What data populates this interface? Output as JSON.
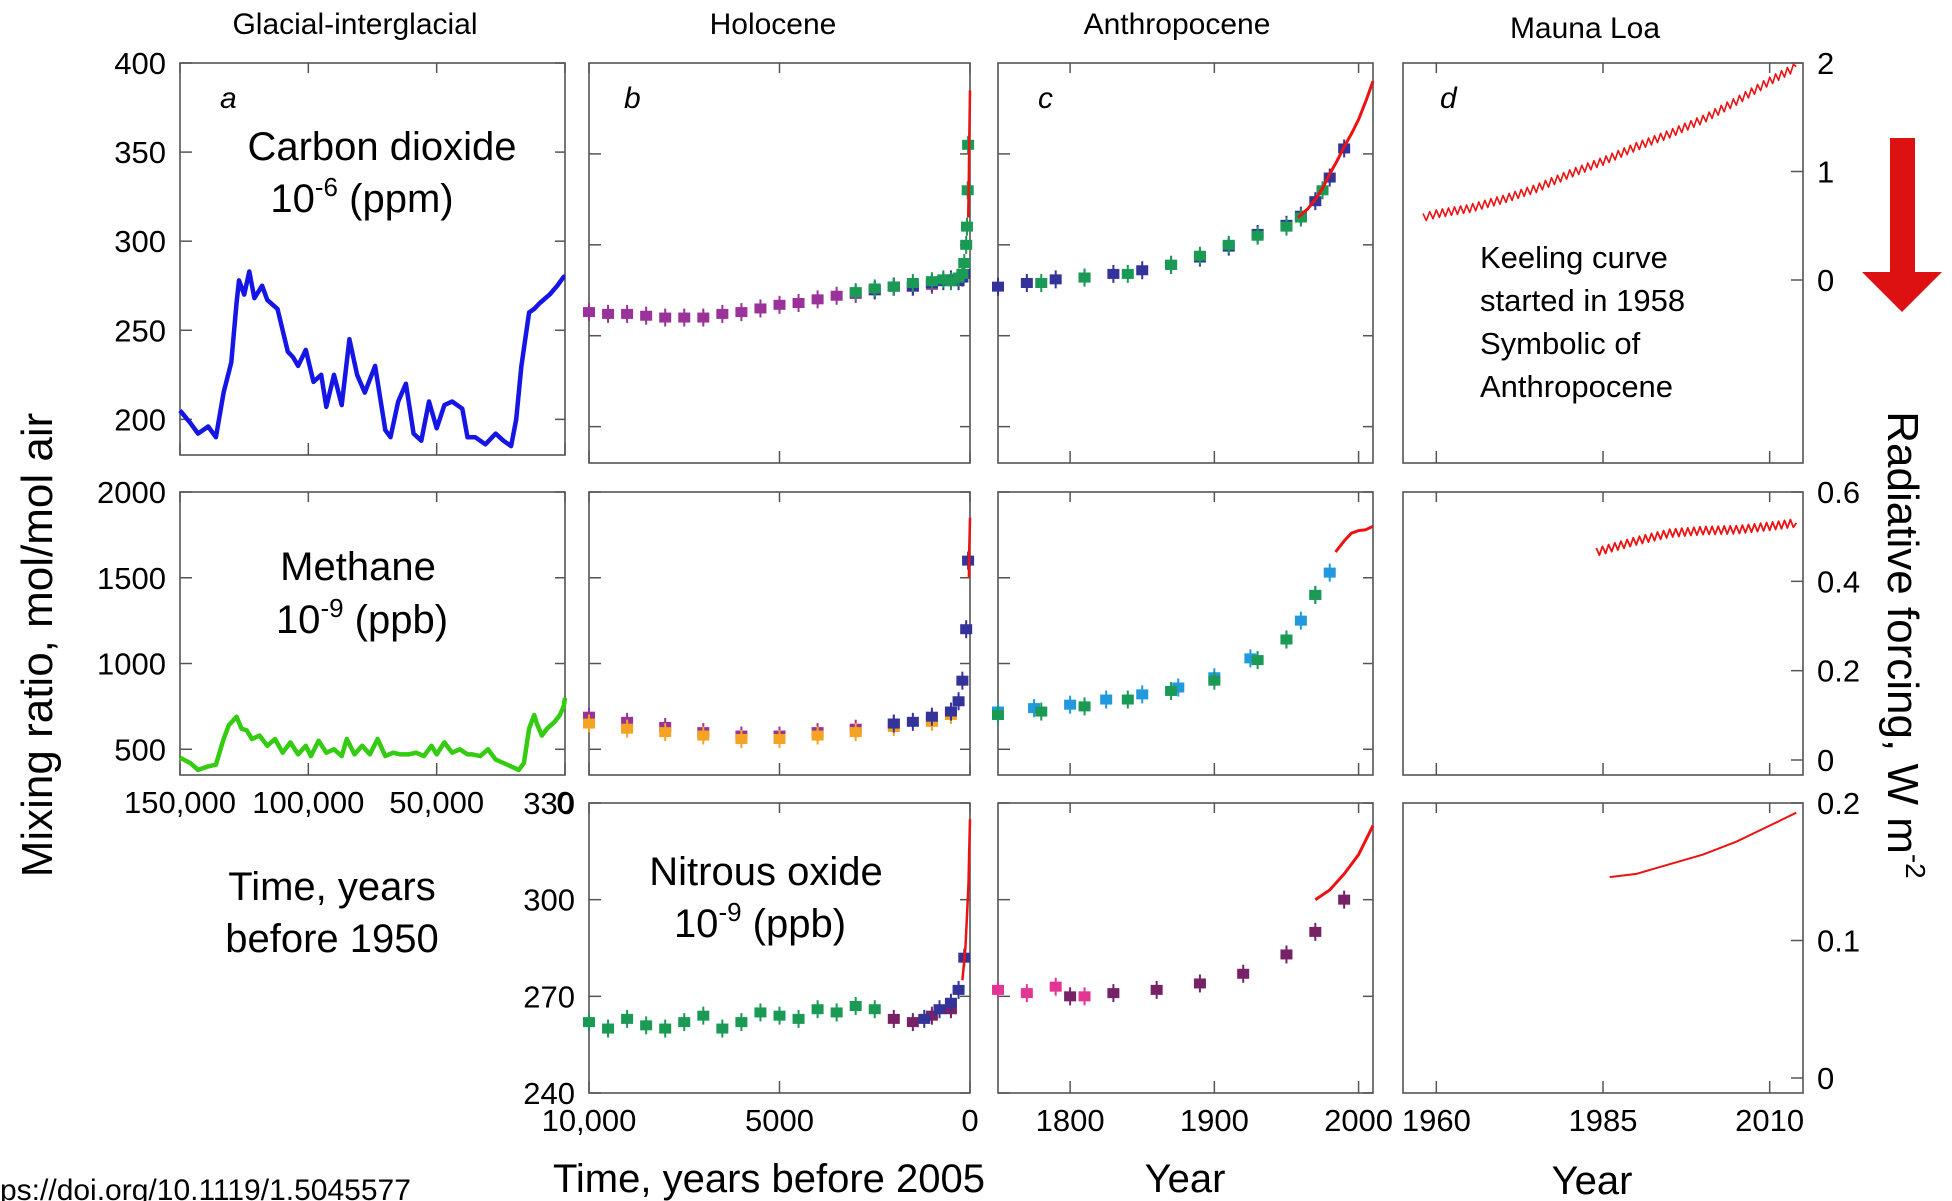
{
  "column_titles": [
    "Glacial-interglacial",
    "Holocene",
    "Anthropocene",
    "Mauna Loa"
  ],
  "panel_letters": [
    "a",
    "b",
    "c",
    "d"
  ],
  "y_axis_label": "Mixing ratio, mol/mol air",
  "right_axis_label": {
    "main": "Radiative forcing, W m",
    "sup": "-2"
  },
  "gas_labels": {
    "co2": {
      "name": "Carbon dioxide",
      "unit_base": "10",
      "unit_exp": "-6",
      "unit_rest": " (ppm)"
    },
    "ch4": {
      "name": "Methane",
      "unit_base": "10",
      "unit_exp": "-9",
      "unit_rest": " (ppb)"
    },
    "n2o": {
      "name": "Nitrous oxide",
      "unit_base": "10",
      "unit_exp": "-9",
      "unit_rest": " (ppb)"
    }
  },
  "x_axis_titles": {
    "a": [
      "Time, years",
      "before 1950"
    ],
    "b": "Time, years before 2005",
    "c": "Year",
    "d": "Year"
  },
  "annotation": [
    "Keeling curve",
    "started in 1958",
    "Symbolic of",
    "Anthropocene"
  ],
  "doi_text": "ps://doi.org/10.1119/1.5045577",
  "colors": {
    "co2_glacial": "#1515e6",
    "ch4_glacial": "#33cc11",
    "instrumental": "#ee1111",
    "green_points": "#1a9a55",
    "purple_points": "#993399",
    "navy_points": "#333399",
    "orange_points": "#f4a422",
    "cyan_points": "#2299dd",
    "pink_points": "#e23594",
    "maroon_points": "#772266",
    "arrow": "#dd1111",
    "doi": "#e23594"
  },
  "chart_data": [
    {
      "panel": "a-co2",
      "type": "line",
      "ylim": [
        180,
        400
      ],
      "yticks": [
        200,
        250,
        300,
        350,
        400
      ],
      "xlim": [
        150000,
        0
      ],
      "xticks": [
        150000,
        100000,
        50000,
        0
      ],
      "xtick_labels": [
        "150,000",
        "100,000",
        "50,000",
        "0"
      ],
      "series": [
        {
          "x": [
            150000,
            146000,
            143000,
            139000,
            136000,
            133000,
            130000,
            128000,
            127000,
            125000,
            123000,
            121000,
            118000,
            116000,
            112000,
            108000,
            106000,
            104000,
            101000,
            98000,
            95000,
            93000,
            90000,
            87000,
            84000,
            81000,
            78000,
            74000,
            70000,
            68000,
            65000,
            62000,
            59000,
            56000,
            53000,
            50000,
            47000,
            44000,
            40000,
            38000,
            35000,
            31000,
            27000,
            24000,
            21000,
            19000,
            17000,
            14000,
            12000,
            10000,
            6000,
            3000,
            500,
            0
          ],
          "y": [
            205,
            198,
            192,
            196,
            190,
            215,
            232,
            265,
            278,
            270,
            283,
            268,
            275,
            267,
            262,
            238,
            235,
            230,
            239,
            221,
            225,
            207,
            225,
            208,
            245,
            225,
            215,
            230,
            194,
            190,
            210,
            220,
            192,
            188,
            210,
            195,
            208,
            210,
            206,
            190,
            190,
            186,
            192,
            188,
            185,
            200,
            230,
            260,
            262,
            265,
            270,
            275,
            280,
            280
          ]
        }
      ]
    },
    {
      "panel": "a-ch4",
      "type": "line",
      "ylim": [
        350,
        2000
      ],
      "yticks": [
        500,
        1000,
        1500,
        2000
      ],
      "xlim": [
        150000,
        0
      ],
      "xticks": [
        150000,
        100000,
        50000,
        0
      ],
      "xtick_labels": [
        "150,000",
        "100,000",
        "50,000",
        "0"
      ],
      "series": [
        {
          "x": [
            150000,
            146000,
            143000,
            139000,
            136000,
            133000,
            131000,
            128000,
            126000,
            124000,
            122000,
            119000,
            116000,
            113000,
            110000,
            107000,
            104000,
            101000,
            99000,
            96000,
            93000,
            90000,
            87000,
            85000,
            82000,
            79000,
            76000,
            73000,
            70000,
            67000,
            64000,
            61000,
            58000,
            55000,
            52000,
            50000,
            47000,
            44000,
            41000,
            38000,
            36000,
            33000,
            30000,
            27000,
            24000,
            21000,
            18000,
            16000,
            14000,
            12000,
            11000,
            9000,
            7000,
            4000,
            2000,
            500,
            0
          ],
          "y": [
            450,
            420,
            380,
            400,
            410,
            560,
            640,
            690,
            620,
            610,
            560,
            580,
            520,
            560,
            480,
            540,
            470,
            520,
            460,
            550,
            480,
            500,
            460,
            560,
            470,
            520,
            470,
            560,
            460,
            480,
            470,
            470,
            480,
            460,
            520,
            470,
            540,
            480,
            500,
            470,
            470,
            460,
            500,
            440,
            420,
            400,
            380,
            420,
            620,
            700,
            650,
            580,
            620,
            660,
            700,
            750,
            800
          ]
        }
      ]
    },
    {
      "panel": "b-co2",
      "type": "scatter",
      "ylim": [
        180,
        400
      ],
      "yticks": [
        200,
        250,
        300,
        350
      ],
      "xlim": [
        10000,
        0
      ],
      "xticks": [
        10000,
        5000,
        0
      ],
      "series": [
        {
          "x": [
            10000,
            9500,
            9000,
            8500,
            8000,
            7500,
            7000,
            6500,
            6000,
            5500,
            5000,
            4500,
            4000,
            3500,
            3000,
            2500,
            2000,
            1500,
            1000
          ],
          "y": [
            263,
            262,
            262,
            261,
            260,
            260,
            260,
            262,
            263,
            265,
            267,
            268,
            270,
            272,
            273,
            275,
            277,
            277,
            278
          ]
        },
        {
          "x": [
            2500,
            2000,
            1500,
            1000,
            700,
            500,
            300,
            200,
            150
          ],
          "y": [
            275,
            277,
            277,
            279,
            280,
            281,
            280,
            282,
            284
          ]
        },
        {
          "x": [
            3000,
            2500,
            2000,
            1500,
            1000,
            700,
            500,
            300,
            200,
            150,
            100,
            80,
            60,
            50
          ],
          "y": [
            274,
            276,
            277,
            279,
            280,
            281,
            280,
            282,
            284,
            290,
            300,
            310,
            330,
            355
          ]
        },
        {
          "x": [
            47,
            40,
            30,
            20,
            10,
            0
          ],
          "y": [
            315,
            325,
            340,
            355,
            370,
            385
          ]
        }
      ]
    },
    {
      "panel": "c-co2",
      "type": "scatter",
      "ylim": [
        180,
        400
      ],
      "yticks": [
        200,
        250,
        300,
        350
      ],
      "xlim": [
        1750,
        2010
      ],
      "xticks": [
        1800,
        1900,
        2000
      ],
      "series": [
        {
          "x": [
            1750,
            1770,
            1790,
            1810,
            1830,
            1850,
            1870,
            1890,
            1910,
            1930,
            1950,
            1960,
            1970,
            1980,
            1990
          ],
          "y": [
            277,
            279,
            281,
            282,
            284,
            286,
            289,
            293,
            299,
            306,
            311,
            316,
            324,
            337,
            353
          ]
        },
        {
          "x": [
            1780,
            1810,
            1840,
            1870,
            1890,
            1910,
            1930,
            1950,
            1960,
            1975
          ],
          "y": [
            279,
            282,
            284,
            289,
            294,
            300,
            305,
            310,
            315,
            330
          ]
        },
        {
          "x": [
            1958,
            1965,
            1970,
            1975,
            1980,
            1985,
            1990,
            1995,
            2000,
            2005,
            2010
          ],
          "y": [
            315,
            320,
            325,
            331,
            339,
            346,
            354,
            361,
            369,
            379,
            390
          ]
        }
      ]
    },
    {
      "panel": "d-co2",
      "type": "line",
      "ylim": [
        180,
        400
      ],
      "xlim": [
        1955,
        2015
      ],
      "xticks": [
        1960,
        1985,
        2010
      ],
      "right_axis": {
        "ticks": [
          0,
          1,
          2
        ]
      },
      "series": [
        {
          "x": [
            1958,
            1960,
            1965,
            1970,
            1975,
            1980,
            1985,
            1990,
            1995,
            2000,
            2005,
            2010,
            2014
          ],
          "y": [
            315,
            317,
            320,
            325,
            331,
            339,
            346,
            354,
            361,
            369,
            379,
            390,
            398
          ]
        }
      ]
    },
    {
      "panel": "b-ch4",
      "type": "scatter",
      "ylim": [
        350,
        2000
      ],
      "yticks": [
        500,
        1000,
        1500,
        2000
      ],
      "xlim": [
        10000,
        0
      ],
      "xticks": [
        10000,
        5000,
        0
      ],
      "series": [
        {
          "x": [
            10000,
            9000,
            8000,
            7000,
            6000,
            5000,
            4000,
            3000,
            2000,
            1000
          ],
          "y": [
            690,
            660,
            630,
            600,
            580,
            580,
            600,
            620,
            650,
            680
          ]
        },
        {
          "x": [
            10000,
            9000,
            8000,
            7000,
            6000,
            5000,
            4000,
            3000,
            2000,
            1000,
            500
          ],
          "y": [
            650,
            620,
            600,
            580,
            560,
            560,
            580,
            600,
            630,
            660,
            700
          ]
        },
        {
          "x": [
            2000,
            1500,
            1000,
            500,
            300,
            200,
            100,
            50
          ],
          "y": [
            650,
            660,
            690,
            720,
            780,
            900,
            1200,
            1600
          ]
        },
        {
          "x": [
            30,
            20,
            10,
            0
          ],
          "y": [
            1500,
            1650,
            1750,
            1850
          ]
        }
      ]
    },
    {
      "panel": "c-ch4",
      "type": "scatter",
      "ylim": [
        350,
        2000
      ],
      "yticks": [
        500,
        1000,
        1500,
        2000
      ],
      "xlim": [
        1750,
        2010
      ],
      "xticks": [
        1800,
        1900,
        2000
      ],
      "series": [
        {
          "x": [
            1750,
            1775,
            1800,
            1825,
            1850,
            1875,
            1900,
            1925,
            1950,
            1960,
            1970,
            1980
          ],
          "y": [
            720,
            740,
            760,
            790,
            820,
            860,
            920,
            1030,
            1140,
            1250,
            1400,
            1530
          ]
        },
        {
          "x": [
            1750,
            1780,
            1810,
            1840,
            1870,
            1900,
            1930,
            1950,
            1970
          ],
          "y": [
            700,
            720,
            750,
            790,
            840,
            900,
            1020,
            1140,
            1400
          ]
        },
        {
          "x": [
            1984,
            1990,
            1995,
            2000,
            2005,
            2010
          ],
          "y": [
            1650,
            1715,
            1760,
            1775,
            1780,
            1800
          ]
        }
      ]
    },
    {
      "panel": "d-ch4",
      "type": "line",
      "ylim": [
        350,
        2000
      ],
      "xlim": [
        1955,
        2015
      ],
      "xticks": [
        1960,
        1985,
        2010
      ],
      "right_axis": {
        "ticks": [
          0,
          0.2,
          0.4,
          0.6
        ]
      },
      "series": [
        {
          "x": [
            1984,
            1990,
            1995,
            2000,
            2005,
            2010,
            2014
          ],
          "y": [
            1650,
            1715,
            1760,
            1775,
            1780,
            1800,
            1820
          ]
        }
      ]
    },
    {
      "panel": "b-n2o",
      "type": "scatter",
      "ylim": [
        240,
        330
      ],
      "yticks": [
        240,
        270,
        300,
        330
      ],
      "xlim": [
        10000,
        0
      ],
      "xticks": [
        10000,
        5000,
        0
      ],
      "xtick_labels": [
        "10,000",
        "5000",
        "0"
      ],
      "series": [
        {
          "x": [
            10000,
            9500,
            9000,
            8500,
            8000,
            7500,
            7000,
            6500,
            6000,
            5500,
            5000,
            4500,
            4000,
            3500,
            3000,
            2500
          ],
          "y": [
            262,
            260,
            263,
            261,
            260,
            262,
            264,
            260,
            262,
            265,
            264,
            263,
            266,
            265,
            267,
            266
          ]
        },
        {
          "x": [
            2000,
            1500,
            1000,
            500
          ],
          "y": [
            263,
            262,
            264,
            266
          ]
        },
        {
          "x": [
            1200,
            800,
            500,
            300,
            150
          ],
          "y": [
            263,
            266,
            268,
            272,
            282
          ]
        },
        {
          "x": [
            200,
            120,
            80,
            40,
            20,
            0
          ],
          "y": [
            275,
            285,
            295,
            305,
            315,
            325
          ]
        }
      ]
    },
    {
      "panel": "c-n2o",
      "type": "scatter",
      "ylim": [
        240,
        330
      ],
      "yticks": [
        240,
        270,
        300,
        330
      ],
      "xlim": [
        1750,
        2010
      ],
      "xticks": [
        1800,
        1900,
        2000
      ],
      "series": [
        {
          "x": [
            1750,
            1770,
            1790,
            1810
          ],
          "y": [
            272,
            271,
            273,
            270
          ]
        },
        {
          "x": [
            1800,
            1830,
            1860,
            1890,
            1920,
            1950,
            1970,
            1990
          ],
          "y": [
            270,
            271,
            272,
            274,
            277,
            283,
            290,
            300
          ]
        },
        {
          "x": [
            1970,
            1980,
            1990,
            2000,
            2010
          ],
          "y": [
            300,
            303,
            308,
            314,
            323
          ]
        }
      ]
    },
    {
      "panel": "d-n2o",
      "type": "line",
      "ylim": [
        240,
        330
      ],
      "xlim": [
        1955,
        2015
      ],
      "xticks": [
        1960,
        1985,
        2010
      ],
      "right_axis": {
        "ticks": [
          0,
          0.1,
          0.2
        ]
      },
      "series": [
        {
          "x": [
            1986,
            1990,
            1995,
            2000,
            2005,
            2010,
            2014
          ],
          "y": [
            307,
            308,
            311,
            314,
            318,
            323,
            327
          ]
        }
      ]
    }
  ]
}
